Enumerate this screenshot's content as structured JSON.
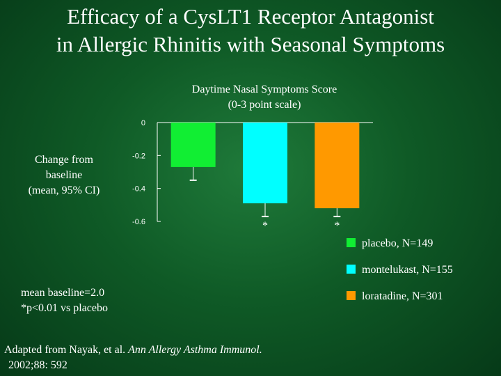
{
  "slide": {
    "title_line1": "Efficacy of a CysLT1 Receptor Antagonist",
    "title_line2": "in Allergic Rhinitis with Seasonal Symptoms",
    "note_line1": "mean baseline=2.0",
    "note_line2": "*p<0.01 vs placebo",
    "source_prefix": "Adapted from Nayak, et al.",
    "source_journal": "Ann Allergy Asthma Immunol.",
    "source_citation": "2002;88: 592"
  },
  "chart_data": {
    "type": "bar",
    "title_line1": "Daytime Nasal Symptoms Score",
    "title_line2": "(0-3 point scale)",
    "ylabel_lines": [
      "Change from",
      "baseline",
      "(mean, 95% CI)"
    ],
    "ylim": [
      -0.6,
      0
    ],
    "yticks": [
      {
        "value": 0,
        "label": "0"
      },
      {
        "value": -0.2,
        "label": "-0.2"
      },
      {
        "value": -0.4,
        "label": "-0.4"
      },
      {
        "value": -0.6,
        "label": "-0.6"
      }
    ],
    "grid": false,
    "legend_position": "right",
    "series": [
      {
        "name": "placebo, N=149",
        "value": -0.27,
        "ci_end": -0.35,
        "color": "#11ee33",
        "significance": ""
      },
      {
        "name": "montelukast, N=155",
        "value": -0.49,
        "ci_end": -0.57,
        "color": "#00ffff",
        "significance": "*"
      },
      {
        "name": "loratadine, N=301",
        "value": -0.52,
        "ci_end": -0.57,
        "color": "#ff9900",
        "significance": "*"
      }
    ]
  }
}
